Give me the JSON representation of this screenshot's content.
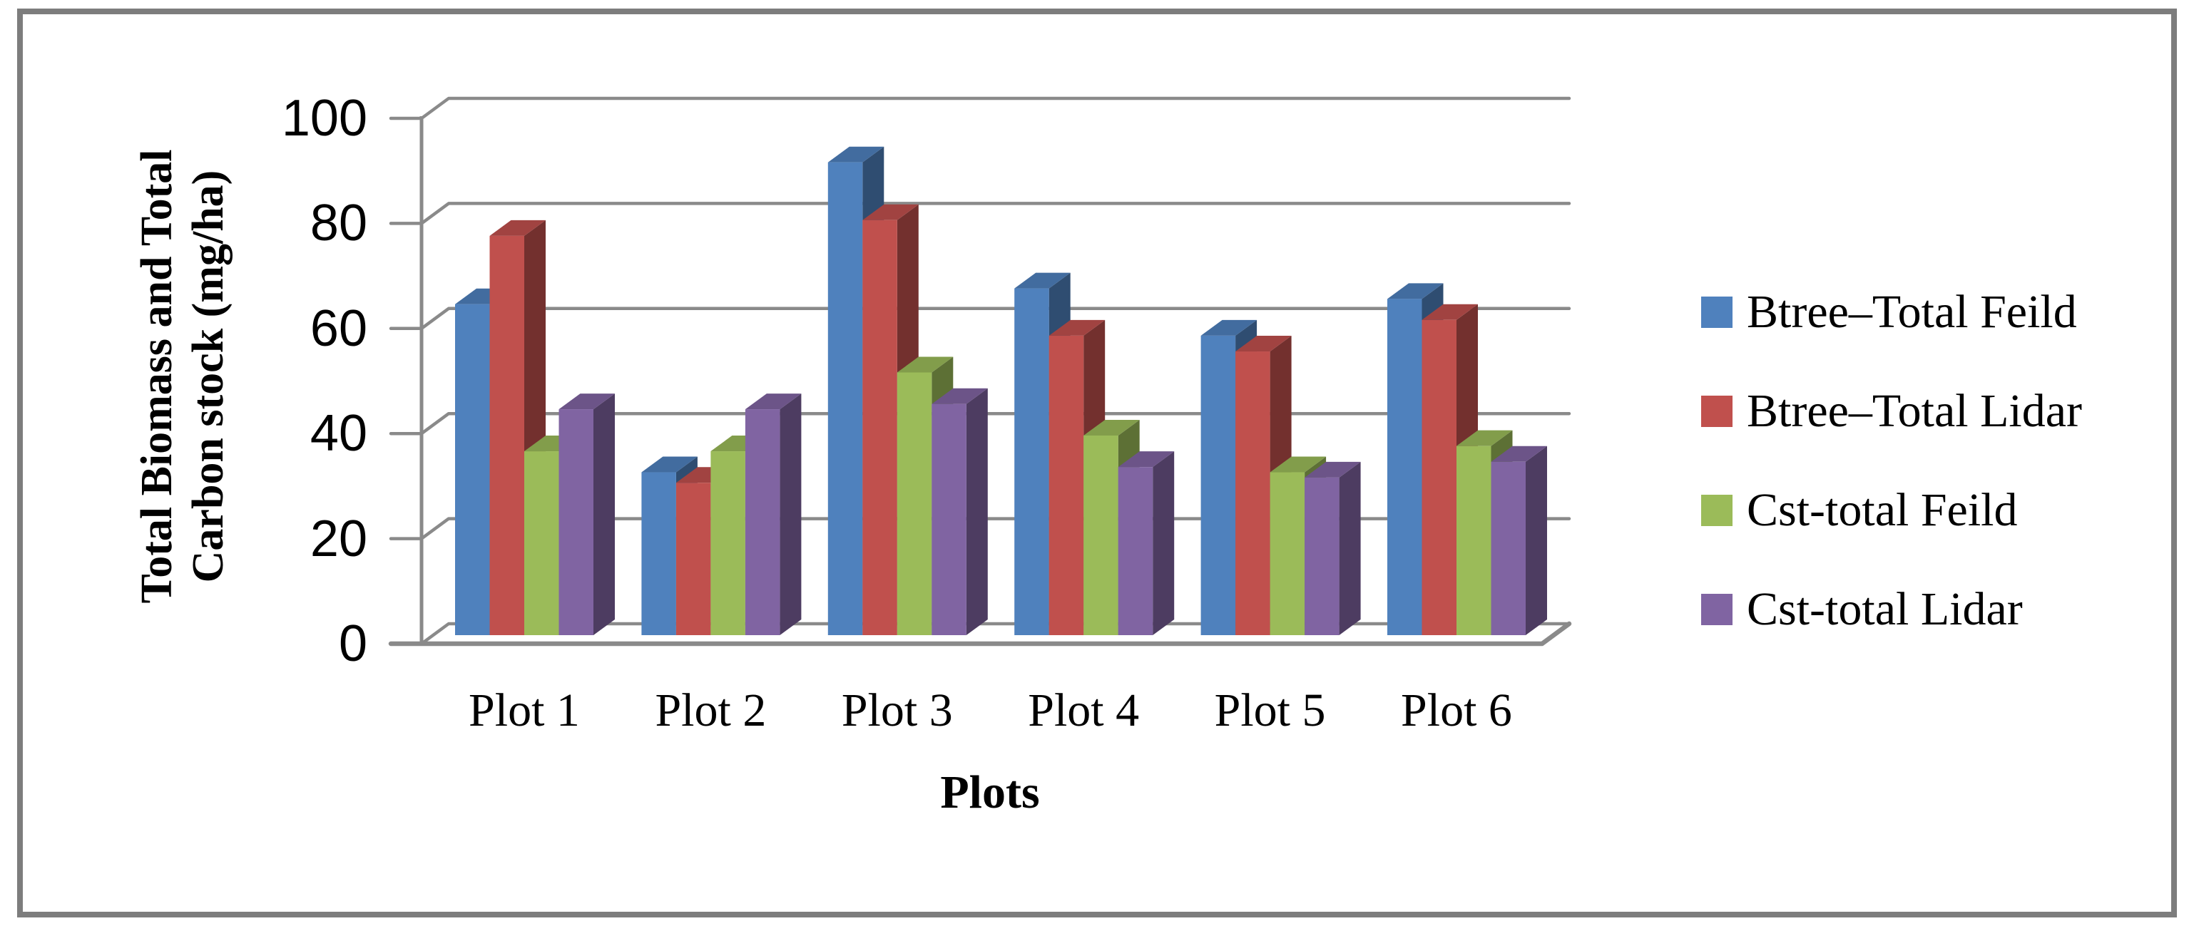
{
  "chart_data": {
    "type": "bar",
    "style": "3d-clustered-column",
    "title": "",
    "xlabel": "Plots",
    "ylabel": "Total Biomass and Total Carbon stock (mg/ha)",
    "ylabel_lines": [
      "Total Biomass and Total",
      "Carbon stock (mg/ha)"
    ],
    "categories": [
      "Plot 1",
      "Plot 2",
      "Plot 3",
      "Plot 4",
      "Plot 5",
      "Plot 6"
    ],
    "yticks": [
      0,
      20,
      40,
      60,
      80,
      100
    ],
    "ylim": [
      0,
      100
    ],
    "grid": true,
    "legend_position": "right",
    "series": [
      {
        "name": "Btree–Total Feild",
        "color": "#4F81BD",
        "values": [
          63,
          31,
          90,
          66,
          57,
          64
        ]
      },
      {
        "name": "Btree–Total Lidar",
        "color": "#C0504D",
        "values": [
          76,
          29,
          79,
          57,
          54,
          60
        ]
      },
      {
        "name": "Cst-total Feild",
        "color": "#9BBB59",
        "values": [
          35,
          35,
          50,
          38,
          31,
          36
        ]
      },
      {
        "name": "Cst-total Lidar",
        "color": "#8064A2",
        "values": [
          43,
          43,
          44,
          32,
          30,
          33
        ]
      }
    ],
    "colors": {
      "gridline": "#8a8a8a",
      "axis": "#8a8a8a",
      "frame_border": "#7d7d7d",
      "text": "#000000"
    }
  }
}
